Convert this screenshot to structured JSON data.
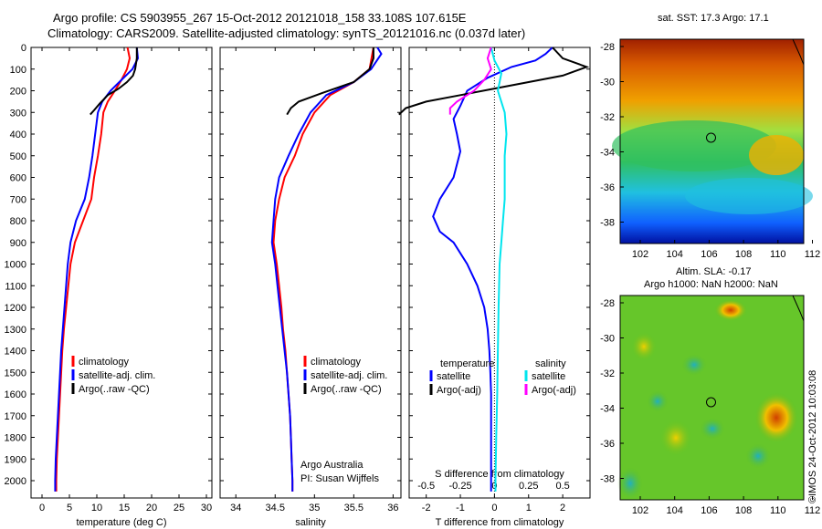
{
  "header": {
    "line1": "Argo profile: CS 5903955_267 15-Oct-2012 20121018_158 33.108S 107.615E",
    "line2": "Climatology: CARS2009. Satellite-adjusted climatology: synTS_20121016.nc (0.037d later)"
  },
  "colors": {
    "climatology": "#ff0000",
    "satellite": "#0000ff",
    "argo": "#000000",
    "sal_satellite": "#00e5ee",
    "sal_argo": "#ff00ff"
  },
  "chart_data": [
    {
      "type": "line",
      "id": "temperature-profile",
      "xlabel": "temperature (deg C)",
      "xlim": [
        -2,
        31
      ],
      "xticks": [
        0,
        5,
        10,
        15,
        20,
        25,
        30
      ],
      "ylim": [
        2080,
        0
      ],
      "yticks": [
        0,
        100,
        200,
        300,
        400,
        500,
        600,
        700,
        800,
        900,
        1000,
        1100,
        1200,
        1300,
        1400,
        1500,
        1600,
        1700,
        1800,
        1900,
        2000
      ],
      "legend": [
        "climatology",
        "satellite-adj. clim.",
        "Argo(..raw -QC)"
      ],
      "series": [
        {
          "name": "climatology",
          "color": "#ff0000",
          "points": [
            [
              15.6,
              0
            ],
            [
              16,
              50
            ],
            [
              15.5,
              100
            ],
            [
              14.5,
              150
            ],
            [
              13.3,
              200
            ],
            [
              12,
              250
            ],
            [
              11.2,
              300
            ],
            [
              10.8,
              400
            ],
            [
              10.2,
              500
            ],
            [
              9.5,
              600
            ],
            [
              9,
              700
            ],
            [
              7.5,
              800
            ],
            [
              6,
              900
            ],
            [
              5.2,
              1000
            ],
            [
              4.8,
              1100
            ],
            [
              4.4,
              1200
            ],
            [
              4,
              1300
            ],
            [
              3.7,
              1400
            ],
            [
              3.5,
              1500
            ],
            [
              3.3,
              1600
            ],
            [
              3.1,
              1700
            ],
            [
              2.9,
              1800
            ],
            [
              2.7,
              1900
            ],
            [
              2.6,
              2000
            ],
            [
              2.6,
              2050
            ]
          ]
        },
        {
          "name": "satellite-adj. clim.",
          "color": "#0000ff",
          "points": [
            [
              17.3,
              0
            ],
            [
              17.5,
              50
            ],
            [
              16.5,
              100
            ],
            [
              14.5,
              150
            ],
            [
              12.5,
              200
            ],
            [
              11,
              250
            ],
            [
              10.2,
              300
            ],
            [
              9.7,
              400
            ],
            [
              9.2,
              500
            ],
            [
              8.6,
              600
            ],
            [
              7.8,
              700
            ],
            [
              6.2,
              800
            ],
            [
              5.2,
              900
            ],
            [
              4.7,
              1000
            ],
            [
              4.4,
              1100
            ],
            [
              4.1,
              1200
            ],
            [
              3.8,
              1300
            ],
            [
              3.5,
              1400
            ],
            [
              3.3,
              1500
            ],
            [
              3.1,
              1600
            ],
            [
              2.9,
              1700
            ],
            [
              2.7,
              1800
            ],
            [
              2.5,
              1900
            ],
            [
              2.4,
              2000
            ],
            [
              2.4,
              2050
            ]
          ]
        },
        {
          "name": "Argo(..raw -QC)",
          "color": "#000000",
          "points": [
            [
              17.3,
              0
            ],
            [
              17.3,
              50
            ],
            [
              17,
              100
            ],
            [
              16.6,
              130
            ],
            [
              15.5,
              160
            ],
            [
              14,
              190
            ],
            [
              12,
              220
            ],
            [
              10.5,
              260
            ],
            [
              9.5,
              290
            ],
            [
              8.8,
              310
            ]
          ]
        }
      ]
    },
    {
      "type": "line",
      "id": "salinity-profile",
      "xlabel": "salinity",
      "xlim": [
        33.8,
        36.1
      ],
      "xticks": [
        34,
        34.5,
        35,
        35.5,
        36
      ],
      "ylim": [
        2080,
        0
      ],
      "legend": [
        "climatology",
        "satellite-adj. clim.",
        "Argo(..raw -QC)"
      ],
      "annotation": [
        "Argo Australia",
        "PI: Susan Wijffels"
      ],
      "series": [
        {
          "name": "climatology",
          "color": "#ff0000",
          "points": [
            [
              35.75,
              0
            ],
            [
              35.7,
              100
            ],
            [
              35.5,
              160
            ],
            [
              35.2,
              220
            ],
            [
              35,
              300
            ],
            [
              34.85,
              400
            ],
            [
              34.75,
              500
            ],
            [
              34.62,
              600
            ],
            [
              34.55,
              700
            ],
            [
              34.5,
              800
            ],
            [
              34.48,
              900
            ],
            [
              34.52,
              1000
            ],
            [
              34.55,
              1100
            ],
            [
              34.58,
              1200
            ],
            [
              34.6,
              1300
            ],
            [
              34.63,
              1400
            ],
            [
              34.65,
              1500
            ],
            [
              34.67,
              1600
            ],
            [
              34.69,
              1700
            ],
            [
              34.7,
              1800
            ],
            [
              34.71,
              1900
            ],
            [
              34.72,
              2000
            ],
            [
              34.72,
              2050
            ]
          ]
        },
        {
          "name": "satellite-adj. clim.",
          "color": "#0000ff",
          "points": [
            [
              35.8,
              0
            ],
            [
              35.85,
              30
            ],
            [
              35.72,
              100
            ],
            [
              35.5,
              160
            ],
            [
              35.15,
              220
            ],
            [
              34.95,
              300
            ],
            [
              34.8,
              400
            ],
            [
              34.67,
              500
            ],
            [
              34.55,
              600
            ],
            [
              34.5,
              700
            ],
            [
              34.48,
              800
            ],
            [
              34.46,
              900
            ],
            [
              34.5,
              1000
            ],
            [
              34.53,
              1100
            ],
            [
              34.56,
              1200
            ],
            [
              34.59,
              1300
            ],
            [
              34.62,
              1400
            ],
            [
              34.65,
              1500
            ],
            [
              34.67,
              1600
            ],
            [
              34.69,
              1700
            ],
            [
              34.7,
              1800
            ],
            [
              34.71,
              1900
            ],
            [
              34.72,
              2000
            ],
            [
              34.72,
              2050
            ]
          ]
        },
        {
          "name": "Argo(..raw -QC)",
          "color": "#000000",
          "points": [
            [
              35.75,
              0
            ],
            [
              35.75,
              50
            ],
            [
              35.7,
              100
            ],
            [
              35.5,
              160
            ],
            [
              35.1,
              210
            ],
            [
              34.8,
              250
            ],
            [
              34.7,
              280
            ],
            [
              34.65,
              310
            ]
          ]
        }
      ]
    },
    {
      "type": "line",
      "id": "difference-profile",
      "xlabel": "T difference from climatology",
      "xlabel_top": "S difference from climatology",
      "xlim": [
        -2.5,
        2.8
      ],
      "xticks": [
        -2,
        -1,
        0,
        1,
        2
      ],
      "sticks": [
        "-0.5",
        "-0.25",
        "0",
        "0.25",
        "0.5"
      ],
      "sticks_pos": [
        -2,
        -1,
        0,
        1,
        2
      ],
      "ylim": [
        2080,
        0
      ],
      "legend": {
        "temperature": [
          "satellite",
          "Argo(-adj)"
        ],
        "salinity": [
          "satellite",
          "Argo(-adj)"
        ]
      },
      "legend_titles": {
        "temperature": "temperature",
        "salinity": "salinity"
      },
      "series": [
        {
          "name": "satellite",
          "group": "temperature",
          "color": "#0000ff",
          "points": [
            [
              1.7,
              0
            ],
            [
              1.5,
              30
            ],
            [
              1.2,
              60
            ],
            [
              0.5,
              90
            ],
            [
              -0.2,
              140
            ],
            [
              -0.8,
              200
            ],
            [
              -1,
              270
            ],
            [
              -1.2,
              330
            ],
            [
              -1.1,
              400
            ],
            [
              -1,
              480
            ],
            [
              -1.2,
              600
            ],
            [
              -1.6,
              700
            ],
            [
              -1.8,
              780
            ],
            [
              -1.6,
              850
            ],
            [
              -1.2,
              900
            ],
            [
              -0.8,
              1000
            ],
            [
              -0.5,
              1100
            ],
            [
              -0.3,
              1200
            ],
            [
              -0.2,
              1300
            ],
            [
              -0.15,
              1400
            ],
            [
              -0.12,
              1500
            ],
            [
              -0.1,
              1600
            ],
            [
              -0.1,
              1800
            ],
            [
              -0.1,
              2000
            ],
            [
              -0.1,
              2050
            ]
          ]
        },
        {
          "name": "Argo(-adj)",
          "group": "temperature",
          "color": "#000000",
          "points": [
            [
              1.7,
              0
            ],
            [
              2.0,
              50
            ],
            [
              2.7,
              90
            ],
            [
              2.0,
              130
            ],
            [
              1,
              160
            ],
            [
              0,
              190
            ],
            [
              -1,
              220
            ],
            [
              -2,
              250
            ],
            [
              -2.6,
              280
            ],
            [
              -2.8,
              310
            ]
          ]
        },
        {
          "name": "satellite",
          "group": "salinity",
          "color": "#00e5ee",
          "points": [
            [
              -0.1,
              0
            ],
            [
              0,
              60
            ],
            [
              0.2,
              120
            ],
            [
              0.1,
              200
            ],
            [
              0.3,
              300
            ],
            [
              0.35,
              400
            ],
            [
              0.3,
              500
            ],
            [
              0.3,
              600
            ],
            [
              0.3,
              700
            ],
            [
              0.25,
              800
            ],
            [
              0.2,
              900
            ],
            [
              0.15,
              1000
            ],
            [
              0.12,
              1200
            ],
            [
              0.1,
              1400
            ],
            [
              0.08,
              1600
            ],
            [
              0.05,
              1800
            ],
            [
              0.03,
              2000
            ],
            [
              0.03,
              2050
            ]
          ]
        },
        {
          "name": "Argo(-adj)",
          "group": "salinity",
          "color": "#ff00ff",
          "points": [
            [
              -0.1,
              0
            ],
            [
              -0.2,
              50
            ],
            [
              -0.1,
              100
            ],
            [
              -0.3,
              150
            ],
            [
              -0.6,
              200
            ],
            [
              -1.1,
              250
            ],
            [
              -1.3,
              280
            ],
            [
              -1.3,
              310
            ]
          ]
        }
      ]
    }
  ],
  "maps": [
    {
      "id": "sst-map",
      "title": "sat. SST: 17.3 Argo: 17.1",
      "xticks": [
        "102",
        "104",
        "106",
        "108",
        "110",
        "112"
      ],
      "yticks": [
        "-28",
        "-30",
        "-32",
        "-34",
        "-36",
        "-38"
      ],
      "marker": {
        "lon": 107.615,
        "lat": -33.108
      }
    },
    {
      "id": "sla-map",
      "title1": "Altim. SLA: -0.17",
      "title2": "Argo h1000: NaN h2000: NaN",
      "xticks": [
        "102",
        "104",
        "106",
        "108",
        "110",
        "112"
      ],
      "yticks": [
        "-28",
        "-30",
        "-32",
        "-34",
        "-36",
        "-38"
      ],
      "marker": {
        "lon": 107.615,
        "lat": -33.108
      }
    }
  ],
  "footer": {
    "stamp": "©IMOS 24-Oct-2012 10:03:08"
  }
}
